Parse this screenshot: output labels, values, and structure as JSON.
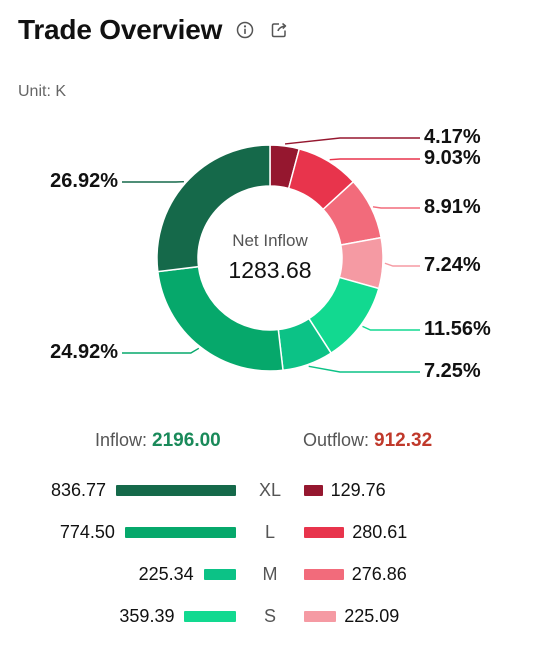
{
  "header": {
    "title": "Trade Overview",
    "unit": "Unit: K"
  },
  "summary": {
    "center_label": "Net Inflow",
    "center_value": "1283.68",
    "inflow_label": "Inflow:",
    "inflow_value": "2196.00",
    "outflow_label": "Outflow:",
    "outflow_value": "912.32"
  },
  "colors": {
    "inflow": [
      "#15694a",
      "#06a86b",
      "#0cc286",
      "#12d990"
    ],
    "outflow": [
      "#95172f",
      "#e8344c",
      "#f26b7b",
      "#f59aa3"
    ],
    "inflow_text": "#1a8a5a",
    "outflow_text": "#c0392b"
  },
  "chart_data": {
    "type": "pie",
    "title": "Trade Overview",
    "unit": "K",
    "slices": [
      {
        "name": "XL",
        "value": 129.76,
        "percent": "4.17%",
        "flow": "out"
      },
      {
        "name": "L",
        "value": 280.61,
        "percent": "9.03%",
        "flow": "out"
      },
      {
        "name": "M",
        "value": 276.86,
        "percent": "8.91%",
        "flow": "out"
      },
      {
        "name": "S",
        "value": 225.09,
        "percent": "7.24%",
        "flow": "out"
      },
      {
        "name": "S",
        "value": 359.39,
        "percent": "11.56%",
        "flow": "in"
      },
      {
        "name": "M",
        "value": 225.34,
        "percent": "7.25%",
        "flow": "in"
      },
      {
        "name": "L",
        "value": 774.5,
        "percent": "24.92%",
        "flow": "in"
      },
      {
        "name": "XL",
        "value": 836.77,
        "percent": "26.92%",
        "flow": "in"
      }
    ],
    "categories": [
      "XL",
      "L",
      "M",
      "S"
    ],
    "series": [
      {
        "name": "Inflow",
        "values": [
          "836.77",
          "774.50",
          "225.34",
          "359.39"
        ]
      },
      {
        "name": "Outflow",
        "values": [
          "129.76",
          "280.61",
          "276.86",
          "225.09"
        ]
      }
    ]
  }
}
